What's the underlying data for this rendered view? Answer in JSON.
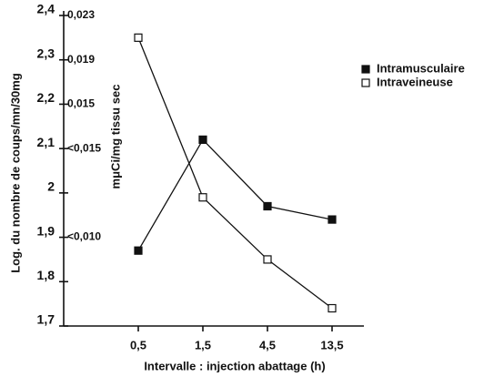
{
  "chart_data": {
    "type": "line",
    "ylabel": "Log. du nombre de coups/mn/30mg",
    "y2label": "mμCi/mg tissu sec",
    "xlabel": "Intervalle : injection abattage (h)",
    "categories": [
      "0,5",
      "1,5",
      "4,5",
      "13,5"
    ],
    "series": [
      {
        "name": "Intramusculaire",
        "color": "#111111",
        "marker": "filled-square",
        "values": [
          1.87,
          2.12,
          1.97,
          1.94
        ]
      },
      {
        "name": "Intraveineuse",
        "color": "#111111",
        "marker": "open-square",
        "values": [
          2.35,
          1.99,
          1.85,
          1.74
        ]
      }
    ],
    "ylim": [
      1.7,
      2.4
    ],
    "yticks": [
      {
        "value": 1.7,
        "label": "1,7"
      },
      {
        "value": 1.8,
        "label": "1,8"
      },
      {
        "value": 1.9,
        "label": "1,9"
      },
      2,
      {
        "value": 2.1,
        "label": "2,1"
      },
      {
        "value": 2.2,
        "label": "2,2"
      },
      {
        "value": 2.3,
        "label": "2,3"
      },
      {
        "value": 2.4,
        "label": "2,4"
      }
    ],
    "y2ticks": [
      {
        "value": 1.9,
        "label": "<0,010"
      },
      {
        "value": 2.1,
        "label": "<0,015"
      },
      {
        "value": 2.2,
        "label": "0,015"
      },
      {
        "value": 2.3,
        "label": "0,019"
      },
      {
        "value": 2.4,
        "label": "0,023"
      }
    ],
    "legend": "upper right"
  }
}
